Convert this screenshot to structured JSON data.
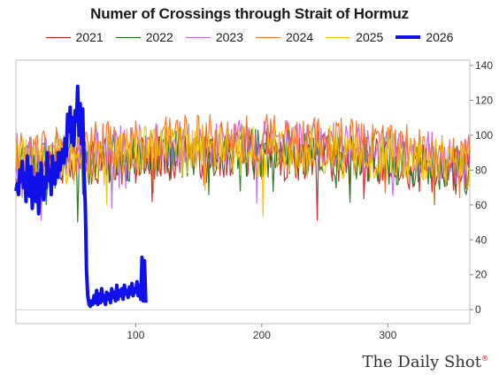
{
  "chart_data": {
    "type": "line",
    "title": "Numer of Crossings through Strait of Hormuz",
    "xlabel": "",
    "ylabel": "",
    "xlim": [
      5,
      365
    ],
    "ylim": [
      -8,
      143
    ],
    "xticks": [
      100,
      200,
      300
    ],
    "yticks": [
      0,
      20,
      40,
      60,
      80,
      100,
      120,
      140
    ],
    "grid": false,
    "legend_position": "top",
    "series": [
      {
        "name": "2021",
        "color": "#c0181e",
        "stroke_width": 1.2,
        "envelope": {
          "base": 88,
          "amp": 14,
          "seed": 21,
          "x_end": 365
        }
      },
      {
        "name": "2022",
        "color": "#1b6b1b",
        "stroke_width": 1.2,
        "envelope": {
          "base": 90,
          "amp": 14,
          "seed": 22,
          "x_end": 365
        }
      },
      {
        "name": "2023",
        "color": "#c060e8",
        "stroke_width": 1.2,
        "envelope": {
          "base": 95,
          "amp": 14,
          "seed": 23,
          "x_end": 365
        }
      },
      {
        "name": "2024",
        "color": "#f07020",
        "stroke_width": 1.2,
        "envelope": {
          "base": 98,
          "amp": 14,
          "seed": 24,
          "x_end": 365
        }
      },
      {
        "name": "2025",
        "color": "#f0c000",
        "stroke_width": 1.2,
        "envelope": {
          "base": 92,
          "amp": 15,
          "seed": 25,
          "x_end": 365
        }
      },
      {
        "name": "2026",
        "color": "#1010e8",
        "stroke_width": 4,
        "points": [
          [
            5,
            68
          ],
          [
            6,
            72
          ],
          [
            7,
            66
          ],
          [
            8,
            80
          ],
          [
            9,
            74
          ],
          [
            10,
            85
          ],
          [
            11,
            70
          ],
          [
            12,
            78
          ],
          [
            13,
            62
          ],
          [
            14,
            88
          ],
          [
            15,
            72
          ],
          [
            16,
            65
          ],
          [
            17,
            82
          ],
          [
            18,
            58
          ],
          [
            19,
            76
          ],
          [
            20,
            70
          ],
          [
            21,
            62
          ],
          [
            22,
            78
          ],
          [
            23,
            55
          ],
          [
            24,
            68
          ],
          [
            25,
            84
          ],
          [
            26,
            72
          ],
          [
            27,
            63
          ],
          [
            28,
            76
          ],
          [
            29,
            70
          ],
          [
            30,
            90
          ],
          [
            31,
            74
          ],
          [
            32,
            80
          ],
          [
            33,
            66
          ],
          [
            34,
            88
          ],
          [
            35,
            78
          ],
          [
            36,
            72
          ],
          [
            37,
            84
          ],
          [
            38,
            76
          ],
          [
            39,
            90
          ],
          [
            40,
            80
          ],
          [
            41,
            86
          ],
          [
            42,
            92
          ],
          [
            43,
            84
          ],
          [
            44,
            98
          ],
          [
            45,
            88
          ],
          [
            46,
            112
          ],
          [
            47,
            102
          ],
          [
            48,
            116
          ],
          [
            49,
            96
          ],
          [
            50,
            110
          ],
          [
            51,
            94
          ],
          [
            52,
            114
          ],
          [
            53,
            108
          ],
          [
            54,
            128
          ],
          [
            55,
            100
          ],
          [
            56,
            118
          ],
          [
            57,
            95
          ],
          [
            58,
            115
          ],
          [
            59,
            78
          ],
          [
            60,
            60
          ],
          [
            61,
            22
          ],
          [
            62,
            8
          ],
          [
            63,
            3
          ],
          [
            64,
            2
          ],
          [
            65,
            5
          ],
          [
            66,
            3
          ],
          [
            67,
            8
          ],
          [
            68,
            4
          ],
          [
            69,
            11
          ],
          [
            70,
            3
          ],
          [
            71,
            9
          ],
          [
            72,
            4
          ],
          [
            73,
            12
          ],
          [
            74,
            5
          ],
          [
            75,
            8
          ],
          [
            76,
            3
          ],
          [
            77,
            10
          ],
          [
            78,
            6
          ],
          [
            79,
            9
          ],
          [
            80,
            4
          ],
          [
            81,
            12
          ],
          [
            82,
            7
          ],
          [
            83,
            10
          ],
          [
            84,
            5
          ],
          [
            85,
            14
          ],
          [
            86,
            6
          ],
          [
            87,
            11
          ],
          [
            88,
            8
          ],
          [
            89,
            12
          ],
          [
            90,
            6
          ],
          [
            91,
            14
          ],
          [
            92,
            9
          ],
          [
            93,
            11
          ],
          [
            94,
            7
          ],
          [
            95,
            13
          ],
          [
            96,
            9
          ],
          [
            97,
            15
          ],
          [
            98,
            8
          ],
          [
            99,
            12
          ],
          [
            100,
            10
          ],
          [
            101,
            16
          ],
          [
            102,
            8
          ],
          [
            103,
            14
          ],
          [
            104,
            6
          ],
          [
            105,
            30
          ],
          [
            106,
            5
          ],
          [
            107,
            28
          ],
          [
            108,
            4
          ]
        ]
      }
    ]
  },
  "branding": {
    "text": "The Daily Shot",
    "mark": "®"
  }
}
